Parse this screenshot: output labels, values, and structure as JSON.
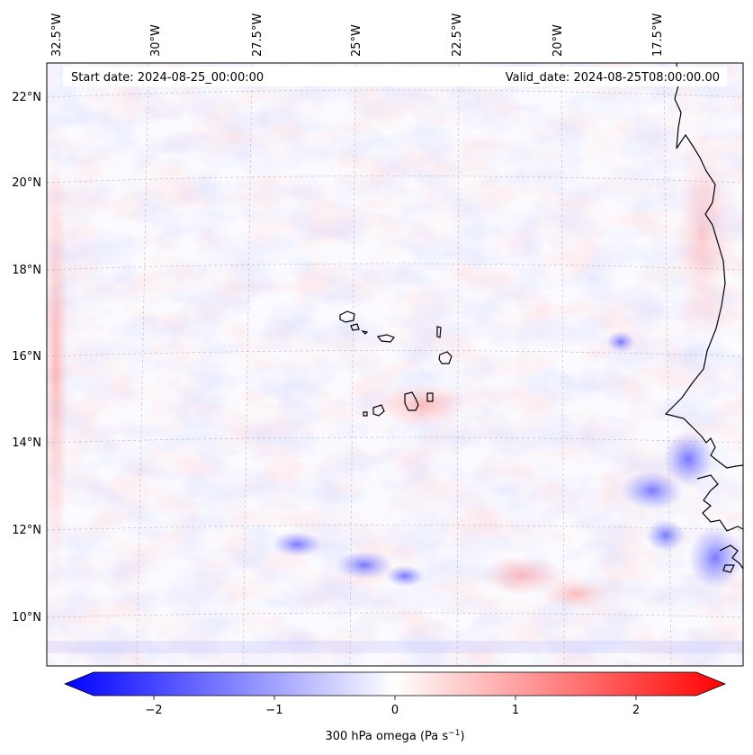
{
  "map": {
    "start_date": "Start date: 2024-08-25_00:00:00",
    "valid_date": "Valid_date: 2024-08-25T08:00:00.00",
    "lon_labels": [
      "32.5°W",
      "30°W",
      "27.5°W",
      "25°W",
      "22.5°W",
      "20°W",
      "17.5°W"
    ],
    "lat_labels": [
      "22°N",
      "20°N",
      "18°N",
      "16°N",
      "14°N",
      "12°N",
      "10°N"
    ],
    "field_colormap": "bwr",
    "coastline_color": "#000000"
  },
  "colorbar": {
    "label_main": "300 hPa omega (Pa s",
    "label_exp": "−1",
    "label_close": ")",
    "ticks": [
      "−2",
      "−1",
      "0",
      "1",
      "2"
    ],
    "tick_values": [
      -2,
      -1,
      0,
      1,
      2
    ],
    "range": [
      -2.5,
      2.5
    ],
    "min_color": "#0000ff",
    "mid_color": "#ffffff",
    "max_color": "#ff0000"
  }
}
